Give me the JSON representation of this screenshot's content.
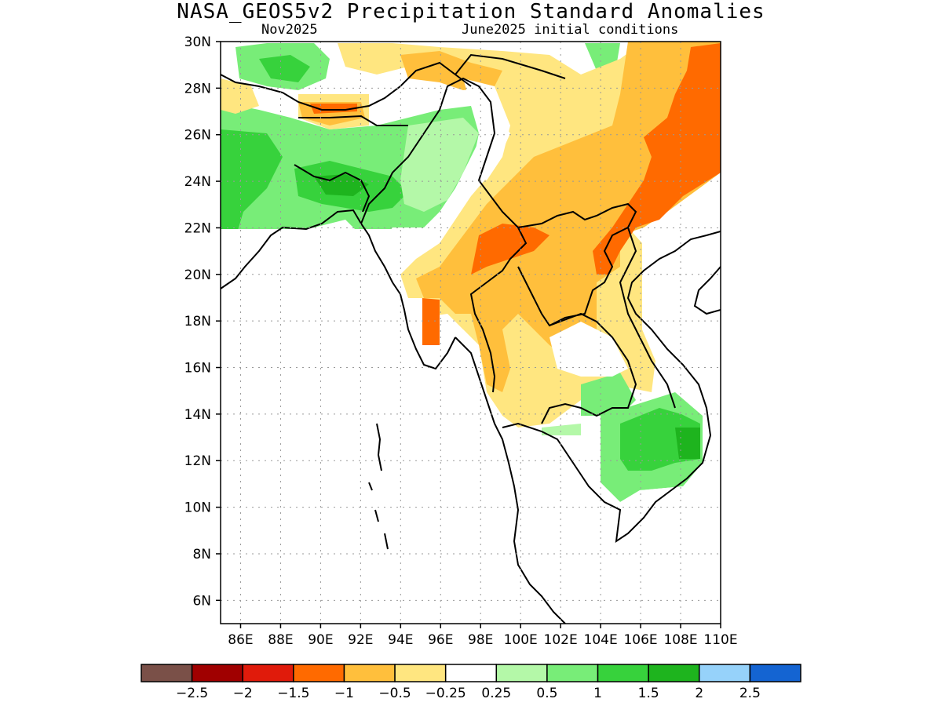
{
  "title": "NASA_GEOS5v2 Precipitation Standard Anomalies",
  "subtitle_left": "Nov2025",
  "subtitle_right": "June2025 initial conditions",
  "map": {
    "lon_range": [
      85,
      110
    ],
    "lat_range": [
      5,
      30
    ],
    "lat_ticks": [
      "6N",
      "8N",
      "10N",
      "12N",
      "14N",
      "16N",
      "18N",
      "20N",
      "22N",
      "24N",
      "26N",
      "28N",
      "30N"
    ],
    "lon_ticks": [
      "86E",
      "88E",
      "90E",
      "92E",
      "94E",
      "96E",
      "98E",
      "100E",
      "102E",
      "104E",
      "106E",
      "108E",
      "110E"
    ],
    "grid": "dotted"
  },
  "colorbar": {
    "colors": [
      "#7a5048",
      "#a00000",
      "#e01b0b",
      "#ff6a00",
      "#ffbf3c",
      "#ffe680",
      "#ffffff",
      "#b4f8a8",
      "#78ed78",
      "#37d23c",
      "#1eb41e",
      "#96d2fa",
      "#1464d2"
    ],
    "labels": [
      "-2.5",
      "-2",
      "-1.5",
      "-1",
      "-0.5",
      "-0.25",
      "0.25",
      "0.5",
      "1",
      "1.5",
      "2",
      "2.5"
    ]
  },
  "colors": {
    "strong_dry": "#ff6a00",
    "dry": "#ffbf3c",
    "slightly_dry": "#ffe680",
    "slightly_wet": "#b4f8a8",
    "wet": "#78ed78",
    "very_wet": "#37d23c",
    "extreme_wet": "#1eb41e"
  }
}
